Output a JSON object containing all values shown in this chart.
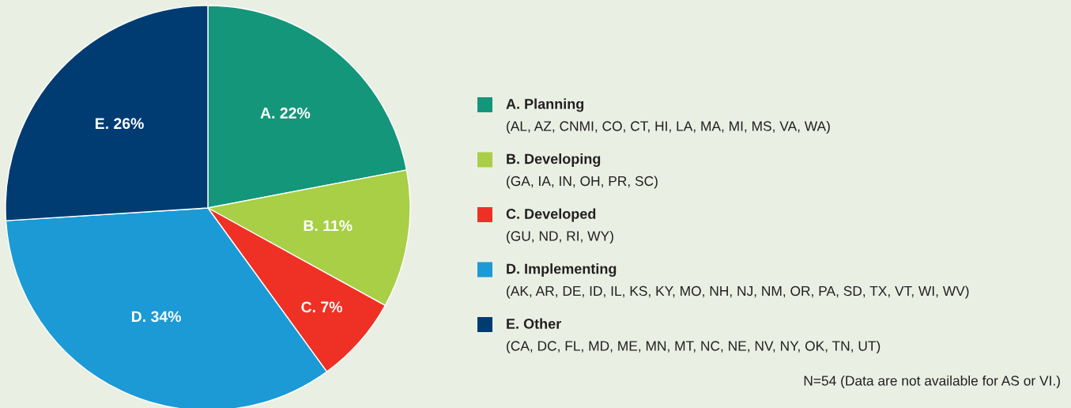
{
  "chart_data": {
    "type": "pie",
    "categories": [
      "A. Planning",
      "B. Developing",
      "C. Developed",
      "D. Implementing",
      "E. Other"
    ],
    "values": [
      22,
      11,
      7,
      34,
      26
    ],
    "colors": [
      "#14967a",
      "#a8cf45",
      "#ee3124",
      "#1b9ad6",
      "#003b71"
    ],
    "value_labels": [
      "A. 22%",
      "B. 11%",
      "C. 7%",
      "D. 34%",
      "E. 26%"
    ],
    "legend": "right",
    "annotations": [
      "(AL, AZ, CNMI, CO, CT, HI, LA, MA, MI, MS, VA, WA)",
      "(GA, IA, IN, OH, PR, SC)",
      "(GU, ND, RI, WY)",
      "(AK, AR, DE, ID, IL, KS, KY, MO, NH, NJ, NM, OR, PA, SD, TX, VT, WI, WV)",
      "(CA, DC, FL, MD, ME, MN, MT, NC, NE, NV, NY, OK, TN, UT)",
      "N=54 (Data are not available for AS or VI.)"
    ]
  }
}
